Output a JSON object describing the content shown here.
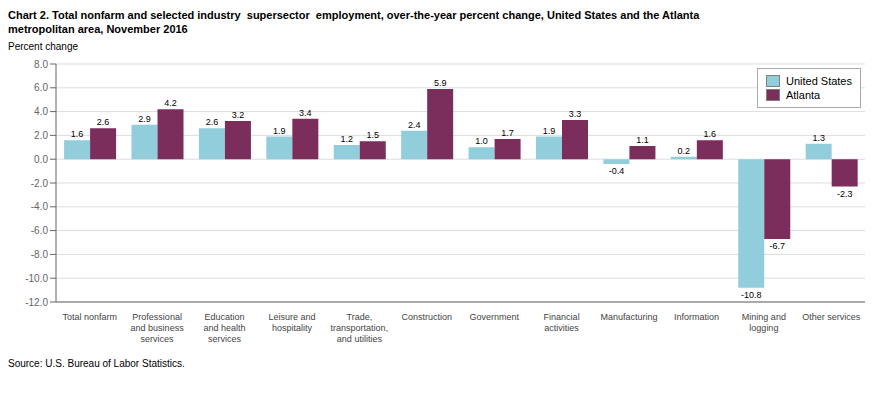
{
  "chart_data": {
    "type": "bar",
    "title": "Chart 2. Total nonfarm and selected industry  supersector  employment, over-the-year percent change, United States and the Atlanta\nmetropolitan area, November 2016",
    "ylabel": "Percent change",
    "source": "Source: U.S. Bureau of Labor Statistics.",
    "categories": [
      "Total nonfarm",
      "Professional\nand business\nservices",
      "Education\nand health\nservices",
      "Leisure and\nhospitality",
      "Trade,\ntransportation,\nand utilities",
      "Construction",
      "Government",
      "Financial\nactivities",
      "Manufacturing",
      "Information",
      "Mining and\nlogging",
      "Other services"
    ],
    "series": [
      {
        "name": "United States",
        "color": "#92CDDC",
        "values": [
          1.6,
          2.9,
          2.6,
          1.9,
          1.2,
          2.4,
          1.0,
          1.9,
          -0.4,
          0.2,
          -10.8,
          1.3
        ],
        "value_labels": [
          "1.6",
          "2.9",
          "2.6",
          "1.9",
          "1.2",
          "2.4",
          "1.0",
          "1.9",
          "-0.4",
          "0.2",
          "-10.8",
          "1.3"
        ]
      },
      {
        "name": "Atlanta",
        "color": "#7B2D5C",
        "values": [
          2.6,
          4.2,
          3.2,
          3.4,
          1.5,
          5.9,
          1.7,
          3.3,
          1.1,
          1.6,
          -6.7,
          -2.3
        ],
        "value_labels": [
          "2.6",
          "4.2",
          "3.2",
          "3.4",
          "1.5",
          "5.9",
          "1.7",
          "3.3",
          "1.1",
          "1.6",
          "-6.7",
          "-2.3"
        ]
      }
    ],
    "ylim": [
      -12.0,
      8.0
    ],
    "yticks": [
      {
        "value": -12.0,
        "label": "-12.0"
      },
      {
        "value": -10.0,
        "label": "-10.0"
      },
      {
        "value": -8.0,
        "label": "-8.0"
      },
      {
        "value": -6.0,
        "label": "-6.0"
      },
      {
        "value": -4.0,
        "label": "-4.0"
      },
      {
        "value": -2.0,
        "label": "-2.0"
      },
      {
        "value": 0.0,
        "label": "0.0"
      },
      {
        "value": 2.0,
        "label": "2.0"
      },
      {
        "value": 4.0,
        "label": "4.0"
      },
      {
        "value": 6.0,
        "label": "6.0"
      },
      {
        "value": 8.0,
        "label": "8.0"
      }
    ],
    "grid": true,
    "legend": "upper right",
    "data_labels": true
  }
}
